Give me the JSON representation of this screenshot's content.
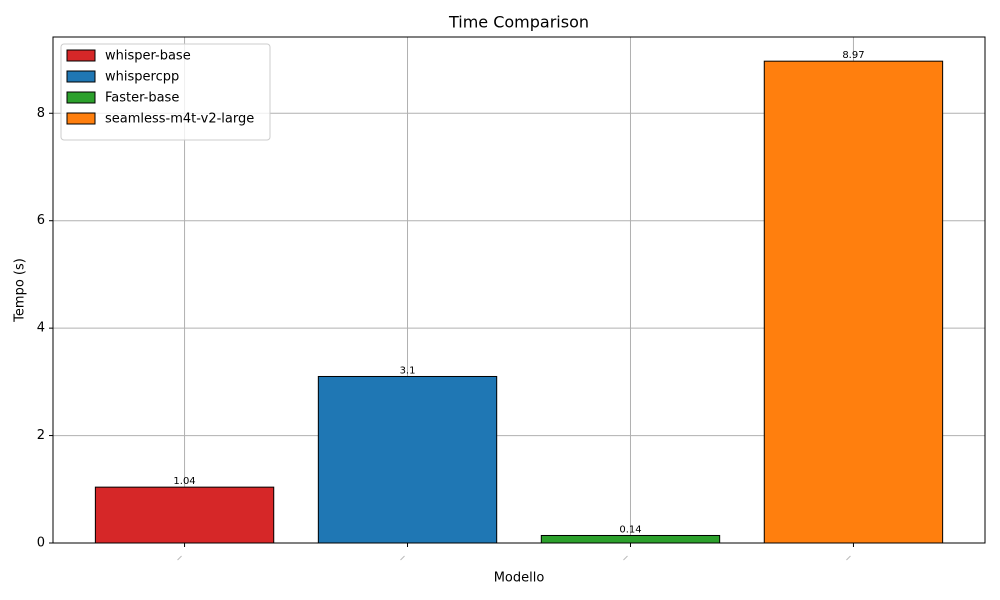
{
  "chart_data": {
    "type": "bar",
    "title": "Time Comparison",
    "x_label": "Modello",
    "y_label": "Tempo (s)",
    "categories": [
      null,
      null,
      null,
      null
    ],
    "series": [
      {
        "name": "whisper-base",
        "color": "#d62728",
        "values": [
          1.04,
          null,
          null,
          null
        ]
      },
      {
        "name": "whispercpp",
        "color": "#1f77b4",
        "values": [
          null,
          3.1,
          null,
          null
        ]
      },
      {
        "name": "Faster-base",
        "color": "#2ca02c",
        "values": [
          null,
          null,
          0.14,
          null
        ]
      },
      {
        "name": "seamless-m4t-v2-large",
        "color": "#ff7f0e",
        "values": [
          null,
          null,
          null,
          8.97
        ]
      }
    ],
    "ylim": [
      0,
      9.42
    ],
    "yticks": [
      0,
      2,
      4,
      6,
      8
    ],
    "grid": true,
    "legend": "upper left"
  }
}
